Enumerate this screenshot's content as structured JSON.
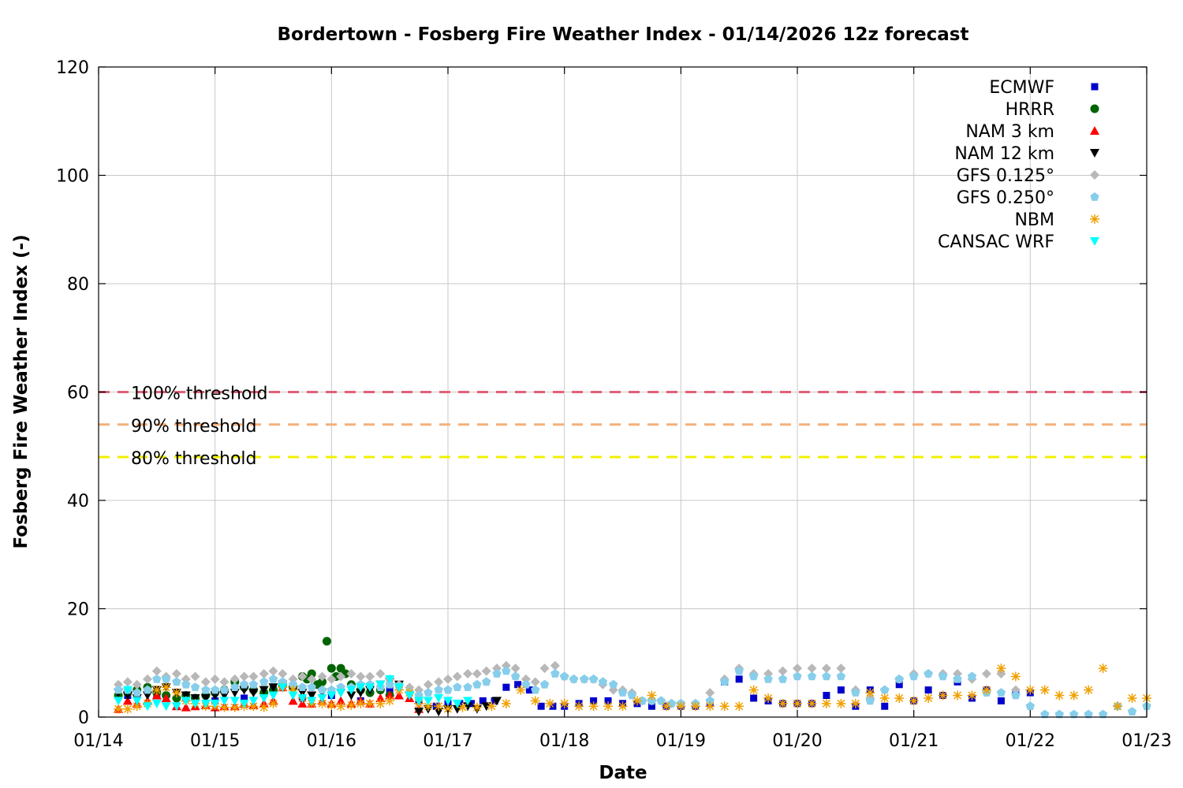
{
  "chart_data": {
    "type": "scatter",
    "title": "Bordertown - Fosberg Fire Weather Index - 01/14/2026 12z forecast",
    "xlabel": "Date",
    "ylabel": "Fosberg Fire Weather Index (-)",
    "ylim": [
      0,
      120
    ],
    "yticks": [
      "0",
      "20",
      "40",
      "60",
      "80",
      "100",
      "120"
    ],
    "xlim": [
      "2026-01-14T00:00",
      "2026-01-23T00:00"
    ],
    "xticks": [
      "01/14",
      "01/15",
      "01/16",
      "01/17",
      "01/18",
      "01/19",
      "01/20",
      "01/21",
      "01/22",
      "01/23"
    ],
    "grid": true,
    "legend_position": "top-right",
    "thresholds": [
      {
        "label": "100% threshold",
        "value": 60,
        "color": "#e0607a"
      },
      {
        "label": "90% threshold",
        "value": 54,
        "color": "#f4b07a"
      },
      {
        "label": "80% threshold",
        "value": 48,
        "color": "#f0f000"
      }
    ],
    "series": [
      {
        "name": "ECMWF",
        "color": "#0000cc",
        "marker": "square",
        "x": [
          0.25,
          0.5,
          0.75,
          1.0,
          1.25,
          1.5,
          1.75,
          2.0,
          2.25,
          2.5,
          2.75,
          2.9,
          3.0,
          3.1,
          3.2,
          3.3,
          3.4,
          3.5,
          3.6,
          3.7,
          3.8,
          3.9,
          4.0,
          4.125,
          4.25,
          4.375,
          4.5,
          4.625,
          4.75,
          4.875,
          5.0,
          5.125,
          5.25,
          5.375,
          5.5,
          5.625,
          5.75,
          5.875,
          6.0,
          6.125,
          6.25,
          6.375,
          6.5,
          6.625,
          6.75,
          6.875,
          7.0,
          7.125,
          7.25,
          7.375,
          7.5,
          7.625,
          7.75,
          7.875,
          8.0
        ],
        "y": [
          4,
          4,
          3.5,
          3,
          3.5,
          5,
          3.5,
          4,
          3,
          5,
          3,
          2,
          2.5,
          2.5,
          2.5,
          3,
          3,
          5.5,
          6,
          5,
          2,
          2,
          2,
          2.5,
          3,
          3,
          2.5,
          2.5,
          2,
          2,
          2,
          2,
          2.5,
          6.5,
          7,
          3.5,
          3,
          2.5,
          2.5,
          2.5,
          4,
          5,
          2,
          5,
          2,
          6,
          3,
          5,
          4,
          6.5,
          3.5,
          5,
          3,
          4.5,
          4.5
        ]
      },
      {
        "name": "HRRR",
        "color": "#006400",
        "marker": "circle",
        "x": [
          0.17,
          0.25,
          0.33,
          0.42,
          0.5,
          0.58,
          0.67,
          0.75,
          0.83,
          0.92,
          1.0,
          1.08,
          1.17,
          1.25,
          1.33,
          1.42,
          1.5,
          1.58,
          1.67,
          1.75,
          1.79,
          1.83,
          1.88,
          1.92,
          1.96,
          2.0,
          2.04,
          2.08,
          2.12,
          2.17,
          2.25,
          2.33,
          2.42,
          2.5
        ],
        "y": [
          4,
          4.5,
          5,
          5.5,
          4.5,
          4,
          3.5,
          4,
          3.5,
          4,
          4.5,
          5,
          6.5,
          5.5,
          5,
          4.5,
          5,
          6,
          5.5,
          7.5,
          7,
          8,
          6,
          6.5,
          14,
          9,
          7.5,
          9,
          8,
          6,
          5,
          4.5,
          5,
          4
        ]
      },
      {
        "name": "NAM 3 km",
        "color": "#ff0000",
        "marker": "triangle-up",
        "x": [
          0.17,
          0.25,
          0.33,
          0.42,
          0.5,
          0.58,
          0.67,
          0.75,
          0.83,
          0.92,
          1.0,
          1.08,
          1.17,
          1.25,
          1.33,
          1.42,
          1.5,
          1.58,
          1.67,
          1.75,
          1.83,
          1.92,
          2.0,
          2.08,
          2.17,
          2.25,
          2.33,
          2.42,
          2.5,
          2.58,
          2.67,
          2.75
        ],
        "y": [
          1.5,
          3,
          2.5,
          3,
          4,
          3.5,
          2,
          1.8,
          2,
          2.2,
          1.8,
          2,
          2,
          2.5,
          2.2,
          2.5,
          3,
          5.5,
          3,
          2.5,
          2.5,
          3,
          2.5,
          3,
          2.5,
          3,
          2.5,
          3.5,
          4,
          4,
          3.5,
          1.5
        ]
      },
      {
        "name": "NAM 12 km",
        "color": "#000000",
        "marker": "triangle-down",
        "x": [
          0.17,
          0.25,
          0.33,
          0.42,
          0.5,
          0.58,
          0.67,
          0.75,
          0.83,
          0.92,
          1.0,
          1.08,
          1.17,
          1.25,
          1.33,
          1.42,
          1.5,
          1.58,
          1.67,
          1.75,
          1.83,
          1.92,
          2.0,
          2.08,
          2.17,
          2.25,
          2.33,
          2.42,
          2.5,
          2.58,
          2.67,
          2.75,
          2.83,
          2.92,
          3.0,
          3.08,
          3.17,
          3.25,
          3.33,
          3.42
        ],
        "y": [
          4.5,
          4,
          3.5,
          4,
          5,
          5.5,
          4.5,
          4,
          3.5,
          3.5,
          4,
          4,
          4.5,
          5,
          4.5,
          5,
          5.5,
          6,
          5,
          4.5,
          4,
          4.5,
          4,
          4.5,
          4,
          4.5,
          5,
          6,
          6.5,
          6,
          4,
          1,
          1.5,
          1,
          1.5,
          1.5,
          2,
          1.5,
          2,
          3
        ]
      },
      {
        "name": "GFS 0.125°",
        "color": "#b8b8b8",
        "marker": "diamond",
        "x": [
          0.17,
          0.25,
          0.33,
          0.42,
          0.5,
          0.58,
          0.67,
          0.75,
          0.83,
          0.92,
          1.0,
          1.08,
          1.17,
          1.25,
          1.33,
          1.42,
          1.5,
          1.58,
          1.67,
          1.75,
          1.83,
          1.92,
          2.0,
          2.08,
          2.17,
          2.25,
          2.33,
          2.42,
          2.5,
          2.58,
          2.67,
          2.75,
          2.83,
          2.92,
          3.0,
          3.08,
          3.17,
          3.25,
          3.33,
          3.42,
          3.5,
          3.58,
          3.67,
          3.75,
          3.83,
          3.92,
          4.0,
          4.08,
          4.17,
          4.25,
          4.33,
          4.42,
          4.5,
          4.58,
          4.67,
          4.75,
          4.83,
          4.92,
          5.0,
          5.125,
          5.25,
          5.375,
          5.5,
          5.625,
          5.75,
          5.875,
          6.0,
          6.125,
          6.25,
          6.375,
          6.5,
          6.625,
          6.75,
          6.875,
          7.0,
          7.125,
          7.25,
          7.375,
          7.5,
          7.625,
          7.75,
          7.875
        ],
        "y": [
          6,
          6.5,
          6,
          7,
          8.5,
          7.5,
          8,
          7,
          7.5,
          6.5,
          7,
          6.5,
          7,
          7.5,
          7.5,
          8,
          8.5,
          8,
          7,
          7.5,
          7,
          7.5,
          7,
          7.5,
          8,
          7.5,
          7.5,
          8,
          7,
          6,
          5.5,
          5,
          6,
          6.5,
          7,
          7.5,
          8,
          8,
          8.5,
          9,
          9.5,
          9,
          7,
          6.5,
          9,
          9.5,
          7.5,
          7,
          7,
          7,
          6,
          5,
          5,
          4.5,
          3,
          3,
          3,
          2.5,
          2.5,
          2.5,
          4.5,
          7,
          9,
          8,
          8,
          8.5,
          9,
          9,
          9,
          9,
          5,
          3.5,
          5,
          7,
          8,
          8,
          8,
          8,
          7,
          8,
          8,
          5
        ]
      },
      {
        "name": "GFS 0.250°",
        "color": "#87ceeb",
        "marker": "pentagon",
        "x": [
          0.17,
          0.25,
          0.33,
          0.42,
          0.5,
          0.58,
          0.67,
          0.75,
          0.83,
          0.92,
          1.0,
          1.08,
          1.17,
          1.25,
          1.33,
          1.42,
          1.5,
          1.58,
          1.67,
          1.75,
          1.83,
          1.92,
          2.0,
          2.08,
          2.17,
          2.25,
          2.33,
          2.42,
          2.5,
          2.58,
          2.67,
          2.75,
          2.83,
          2.92,
          3.0,
          3.08,
          3.17,
          3.25,
          3.33,
          3.42,
          3.5,
          3.58,
          3.67,
          3.75,
          3.83,
          3.92,
          4.0,
          4.08,
          4.17,
          4.25,
          4.33,
          4.42,
          4.5,
          4.58,
          4.67,
          4.75,
          4.83,
          4.92,
          5.0,
          5.125,
          5.25,
          5.375,
          5.5,
          5.625,
          5.75,
          5.875,
          6.0,
          6.125,
          6.25,
          6.375,
          6.5,
          6.625,
          6.75,
          6.875,
          7.0,
          7.125,
          7.25,
          7.375,
          7.5,
          7.625,
          7.75,
          7.875,
          8.0,
          8.125,
          8.25,
          8.375,
          8.5,
          8.625,
          8.75,
          8.875,
          9.0
        ],
        "y": [
          5,
          5,
          4.5,
          5,
          7,
          7,
          6.5,
          6,
          5.5,
          5,
          5,
          5,
          5.5,
          6,
          6,
          6.5,
          7,
          6.5,
          6,
          5.5,
          5.5,
          5,
          5,
          5.5,
          5.5,
          6,
          6,
          5.5,
          6,
          5.5,
          4.5,
          4,
          4.5,
          5,
          5,
          5.5,
          5.5,
          6,
          6.5,
          8,
          8.5,
          7.5,
          6,
          5,
          6,
          8,
          7.5,
          7,
          7,
          7,
          6.5,
          6,
          4.5,
          4,
          3,
          3,
          3,
          2.5,
          2.5,
          2.5,
          3,
          6.5,
          8.5,
          7.5,
          7,
          7,
          7.5,
          7.5,
          7.5,
          7.5,
          4.5,
          3,
          5,
          7,
          7.5,
          8,
          7.5,
          7,
          7.5,
          4.5,
          4.5,
          4,
          2,
          0.5,
          0.5,
          0.5,
          0.5,
          0.5,
          2,
          1,
          2
        ]
      },
      {
        "name": "NBM",
        "color": "#f0a000",
        "marker": "star",
        "x": [
          0.17,
          0.25,
          0.33,
          0.42,
          0.5,
          0.58,
          0.67,
          0.75,
          0.83,
          0.92,
          1.0,
          1.08,
          1.17,
          1.25,
          1.33,
          1.42,
          1.5,
          1.58,
          1.67,
          1.75,
          1.83,
          1.92,
          2.0,
          2.08,
          2.17,
          2.25,
          2.33,
          2.42,
          2.5,
          2.58,
          2.67,
          2.75,
          2.83,
          2.92,
          3.0,
          3.125,
          3.25,
          3.375,
          3.5,
          3.625,
          3.75,
          3.875,
          4.0,
          4.125,
          4.25,
          4.375,
          4.5,
          4.625,
          4.75,
          4.875,
          5.0,
          5.125,
          5.25,
          5.375,
          5.5,
          5.625,
          5.75,
          5.875,
          6.0,
          6.125,
          6.25,
          6.375,
          6.5,
          6.625,
          6.75,
          6.875,
          7.0,
          7.125,
          7.25,
          7.375,
          7.5,
          7.625,
          7.75,
          7.875,
          8.0,
          8.125,
          8.25,
          8.375,
          8.5,
          8.625,
          8.75,
          8.875,
          9.0
        ],
        "y": [
          1.5,
          1.5,
          2,
          2.5,
          5,
          5.5,
          4.5,
          3,
          2.5,
          2,
          2,
          1.8,
          1.8,
          2,
          2,
          1.8,
          2.5,
          5.5,
          5,
          3.5,
          2.5,
          2.5,
          2.2,
          2,
          2.2,
          2.5,
          2.5,
          2.5,
          3,
          5,
          4.5,
          2.5,
          2,
          2,
          1.5,
          1.8,
          1.8,
          2,
          2.5,
          5,
          3,
          2.5,
          2.5,
          2,
          2,
          2,
          2,
          3,
          4,
          2,
          2,
          2,
          2,
          2,
          2,
          5,
          3.5,
          2.5,
          2.5,
          2.5,
          2.5,
          2.5,
          2.5,
          4.5,
          3.5,
          3.5,
          3,
          3.5,
          4,
          4,
          4,
          5,
          9,
          7.5,
          5,
          5,
          4,
          4,
          5,
          9,
          2,
          3.5,
          3.5
        ]
      },
      {
        "name": "CANSAC WRF",
        "color": "#00ffff",
        "marker": "triangle-down",
        "x": [
          0.17,
          0.25,
          0.33,
          0.42,
          0.5,
          0.58,
          0.67,
          0.75,
          0.83,
          0.92,
          1.0,
          1.08,
          1.17,
          1.25,
          1.33,
          1.42,
          1.5,
          1.58,
          1.67,
          1.75,
          1.83,
          1.92,
          2.0,
          2.08,
          2.17,
          2.25,
          2.33,
          2.42,
          2.5,
          2.58,
          2.67,
          2.75,
          2.83,
          2.92,
          3.0,
          3.08,
          3.17
        ],
        "y": [
          3,
          5,
          3,
          2,
          2.5,
          2,
          2,
          3,
          2.5,
          2.5,
          2.5,
          3,
          3,
          2.5,
          3,
          3.5,
          4,
          5.5,
          4,
          3.5,
          3,
          3.5,
          4,
          4.5,
          5,
          5.5,
          5.5,
          6,
          7,
          5.5,
          4,
          3,
          3,
          3.5,
          3,
          2.5,
          3
        ]
      }
    ]
  }
}
